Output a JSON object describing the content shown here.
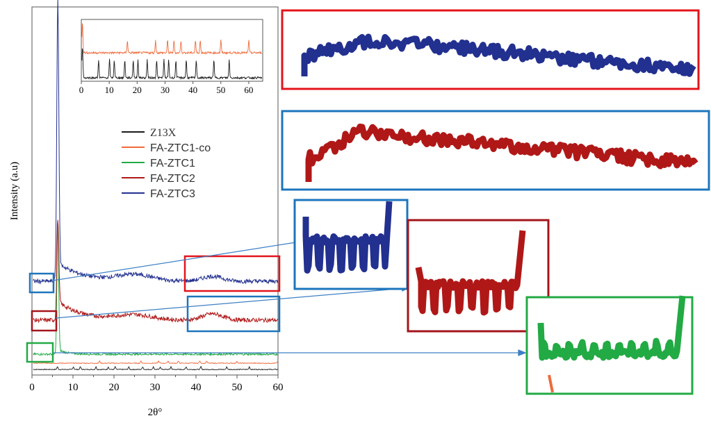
{
  "chart_data": [
    {
      "type": "line",
      "title": "",
      "xlabel": "2θ°",
      "ylabel": "Intensity (a.u)",
      "xlim": [
        0,
        60
      ],
      "xticks": [
        0,
        10,
        20,
        30,
        40,
        50,
        60
      ],
      "grid": false,
      "legend_position": "center-right",
      "series": [
        {
          "name": "Z13X",
          "color": "#1a1a1a",
          "peaks": [
            6.2,
            10.1,
            11.8,
            15.6,
            18.6,
            20.3,
            23.6,
            27.0,
            29.6,
            31.3,
            33.9,
            37.6,
            41.2,
            47.5,
            53.0
          ]
        },
        {
          "name": "FA-ZTC1-co",
          "color": "#f06a3a",
          "peaks": [
            16.5,
            26.6,
            30.9,
            33.2,
            35.7,
            40.9,
            42.6,
            50.0,
            60.0
          ]
        },
        {
          "name": "FA-ZTC1",
          "color": "#22aa44",
          "peaks": [
            6.3
          ]
        },
        {
          "name": "FA-ZTC2",
          "color": "#b01818",
          "peaks": [
            6.3,
            26.0,
            43.5
          ]
        },
        {
          "name": "FA-ZTC3",
          "color": "#22308f",
          "peaks": [
            6.3,
            25.0,
            44.0
          ]
        }
      ]
    },
    {
      "type": "line",
      "title": "",
      "xlim": [
        0,
        65
      ],
      "xticks": [
        0,
        10,
        20,
        30,
        40,
        50,
        60
      ],
      "series": [
        {
          "name": "FA-ZTC1-co",
          "color": "#f06a3a",
          "peaks": [
            16.5,
            26.6,
            30.9,
            33.2,
            35.7,
            40.9,
            42.6,
            50.0,
            60.0
          ]
        },
        {
          "name": "Z13X",
          "color": "#1a1a1a",
          "peaks": [
            6.2,
            10.1,
            11.8,
            15.6,
            18.6,
            20.3,
            23.6,
            27.0,
            29.6,
            31.3,
            33.9,
            37.6,
            41.2,
            47.5,
            53.0
          ]
        }
      ]
    }
  ],
  "colors": {
    "z13x": "#1a1a1a",
    "ztc1co": "#f06a3a",
    "ztc1": "#22aa44",
    "ztc2": "#b01818",
    "ztc3": "#22308f",
    "box_red": "#e3141b",
    "box_blue": "#1c75bc",
    "box_darkred": "#a3141b",
    "box_green": "#22aa44",
    "arrow": "#3d7fc4"
  }
}
